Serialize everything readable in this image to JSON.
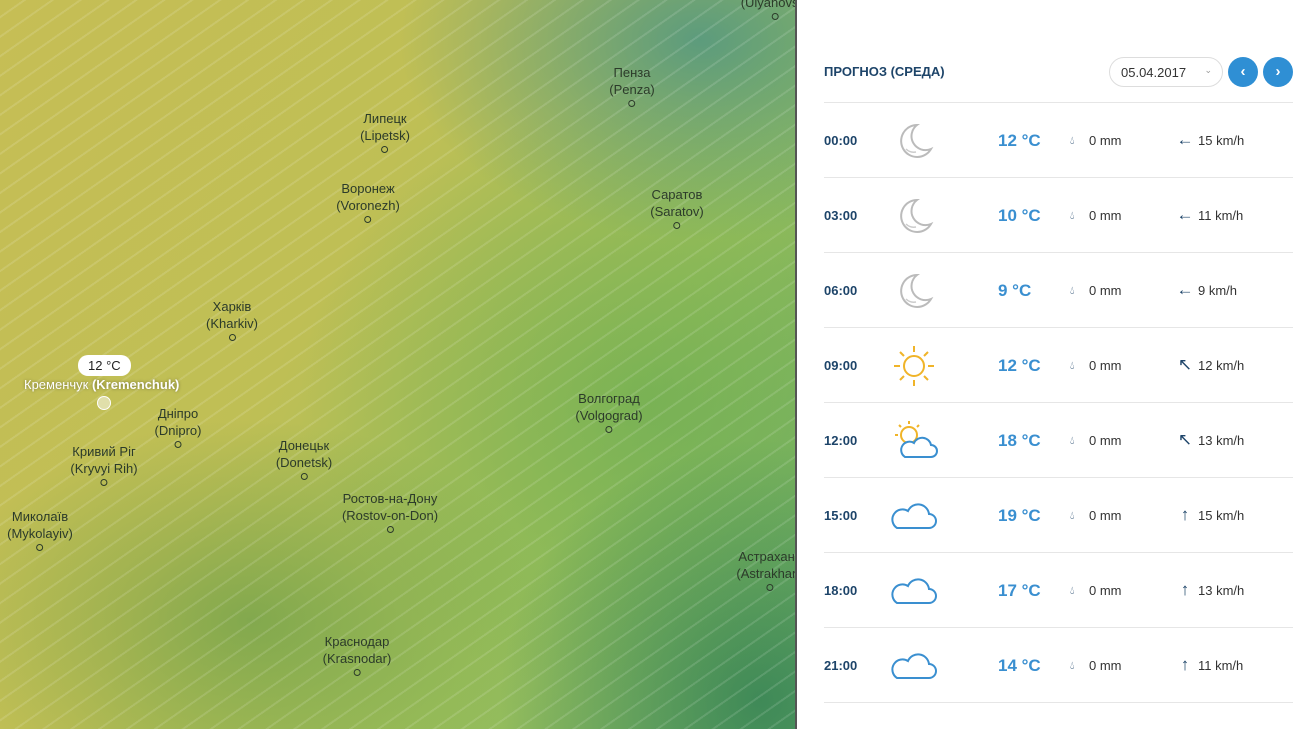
{
  "map": {
    "tooltip": "12 °C",
    "selected_city": {
      "local": "Кременчук",
      "latin": "(Kremenchuk)"
    },
    "cities": [
      {
        "local": "Пенза",
        "latin": "(Penza)"
      },
      {
        "local": "Липецк",
        "latin": "(Lipetsk)"
      },
      {
        "local": "Воронеж",
        "latin": "(Voronezh)"
      },
      {
        "local": "Саратов",
        "latin": "(Saratov)"
      },
      {
        "local": "Харків",
        "latin": "(Kharkiv)"
      },
      {
        "local": "Дніпро",
        "latin": "(Dnipro)"
      },
      {
        "local": "Кривий Ріг",
        "latin": "(Kryvyi Rih)"
      },
      {
        "local": "Донецьк",
        "latin": "(Donetsk)"
      },
      {
        "local": "Волгоград",
        "latin": "(Volgograd)"
      },
      {
        "local": "Миколаїв",
        "latin": "(Mykolayiv)"
      },
      {
        "local": "Ростов-на-Дону",
        "latin": "(Rostov-on-Don)"
      },
      {
        "local": "Астрахань",
        "latin": "(Astrakhan)"
      },
      {
        "local": "Краснодар",
        "latin": "(Krasnodar)"
      },
      {
        "local": "",
        "latin": "(Ulyanovsk)"
      }
    ]
  },
  "panel": {
    "title": "ПРОГНОЗ (СРЕДА)",
    "date": "05.04.2017",
    "prev": "‹",
    "next": "›",
    "rows": [
      {
        "time": "00:00",
        "icon": "moon",
        "temp": "12 °C",
        "precip": "0 mm",
        "wind_dir": "left",
        "wind": "15 km/h"
      },
      {
        "time": "03:00",
        "icon": "moon",
        "temp": "10 °C",
        "precip": "0 mm",
        "wind_dir": "left",
        "wind": "11 km/h"
      },
      {
        "time": "06:00",
        "icon": "moon",
        "temp": "9 °C",
        "precip": "0 mm",
        "wind_dir": "left",
        "wind": "9 km/h"
      },
      {
        "time": "09:00",
        "icon": "sun",
        "temp": "12 °C",
        "precip": "0 mm",
        "wind_dir": "up-left",
        "wind": "12 km/h"
      },
      {
        "time": "12:00",
        "icon": "sun-cloud",
        "temp": "18 °C",
        "precip": "0 mm",
        "wind_dir": "up-left",
        "wind": "13 km/h"
      },
      {
        "time": "15:00",
        "icon": "cloud",
        "temp": "19 °C",
        "precip": "0 mm",
        "wind_dir": "up",
        "wind": "15 km/h"
      },
      {
        "time": "18:00",
        "icon": "cloud",
        "temp": "17 °C",
        "precip": "0 mm",
        "wind_dir": "up",
        "wind": "13 km/h"
      },
      {
        "time": "21:00",
        "icon": "cloud",
        "temp": "14 °C",
        "precip": "0 mm",
        "wind_dir": "up",
        "wind": "11 km/h"
      }
    ]
  }
}
